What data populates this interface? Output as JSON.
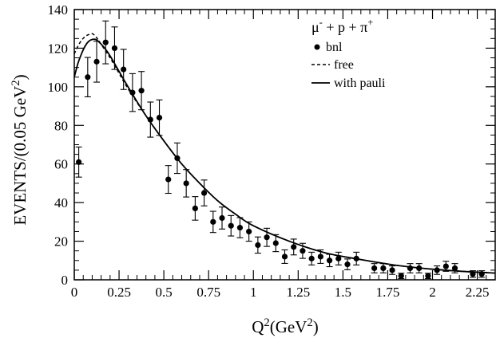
{
  "chart_data": {
    "type": "scatter",
    "title": "",
    "xlabel": "Q^2(GeV^2)",
    "ylabel": "EVENTS/(0.05 GeV^2)",
    "xlim": [
      0,
      2.35
    ],
    "ylim": [
      0,
      140
    ],
    "x_ticks": [
      0,
      0.25,
      0.5,
      0.75,
      1,
      1.25,
      1.5,
      1.75,
      2,
      2.25
    ],
    "x_tick_labels": [
      "0",
      "0.25",
      "0.5",
      "0.75",
      "1",
      "1.25",
      "1.5",
      "1.75",
      "2",
      "2.25"
    ],
    "y_ticks": [
      0,
      20,
      40,
      60,
      80,
      100,
      120,
      140
    ],
    "y_tick_labels": [
      "0",
      "20",
      "40",
      "60",
      "80",
      "100",
      "120",
      "140"
    ],
    "grid": false,
    "legend_placement": "top-right",
    "legend_title": "μ- + p + π+",
    "series": [
      {
        "name": "bnl",
        "kind": "points-with-errorbars",
        "x": [
          0.025,
          0.075,
          0.125,
          0.175,
          0.225,
          0.275,
          0.325,
          0.375,
          0.425,
          0.475,
          0.525,
          0.575,
          0.625,
          0.675,
          0.725,
          0.775,
          0.825,
          0.875,
          0.925,
          0.975,
          1.025,
          1.075,
          1.125,
          1.175,
          1.225,
          1.275,
          1.325,
          1.375,
          1.425,
          1.475,
          1.525,
          1.575,
          1.675,
          1.725,
          1.775,
          1.825,
          1.875,
          1.925,
          1.975,
          2.025,
          2.075,
          2.125,
          2.225,
          2.275
        ],
        "y": [
          61,
          105,
          113,
          123,
          120,
          109,
          97,
          98,
          83,
          84,
          52,
          63,
          50,
          37,
          45,
          30,
          32,
          28,
          27,
          25,
          18,
          22,
          19,
          12,
          17,
          15,
          11,
          12,
          10,
          11,
          8,
          11,
          6,
          6,
          5,
          2,
          6,
          6,
          2,
          5,
          7,
          6,
          3,
          3
        ],
        "err": [
          7.8,
          10.2,
          10.6,
          11.1,
          11,
          10.4,
          9.8,
          9.9,
          9.1,
          9.2,
          7.2,
          7.9,
          7.1,
          6.1,
          6.7,
          5.5,
          5.7,
          5.3,
          5.2,
          5,
          4.2,
          4.7,
          4.4,
          3.5,
          4.1,
          3.9,
          3.3,
          3.5,
          3.2,
          3.3,
          2.8,
          3.3,
          2.4,
          2.4,
          2.2,
          1.4,
          2.4,
          2.4,
          1.4,
          2.2,
          2.6,
          2.4,
          1.7,
          1.7
        ]
      },
      {
        "name": "free",
        "kind": "dashed-curve",
        "x": [
          0,
          0.02,
          0.04,
          0.06,
          0.08,
          0.1,
          0.12,
          0.15,
          0.2,
          0.25,
          0.3,
          0.4,
          0.5,
          0.6,
          0.7,
          0.8,
          0.9,
          1.0,
          1.2,
          1.4,
          1.6,
          1.8,
          2.0,
          2.2,
          2.35
        ],
        "y": [
          117,
          121,
          124,
          126,
          127,
          127.5,
          126,
          122,
          115,
          107,
          99,
          85,
          72,
          60,
          50,
          41,
          34,
          28,
          20,
          14,
          10.5,
          7.5,
          5.5,
          4.2,
          3.5
        ]
      },
      {
        "name": "with pauli",
        "kind": "solid-curve",
        "x": [
          0,
          0.02,
          0.04,
          0.06,
          0.08,
          0.1,
          0.12,
          0.14,
          0.17,
          0.2,
          0.25,
          0.3,
          0.4,
          0.5,
          0.6,
          0.7,
          0.8,
          0.9,
          1.0,
          1.2,
          1.4,
          1.6,
          1.8,
          2.0,
          2.2,
          2.35
        ],
        "y": [
          105,
          112,
          117,
          121,
          123.5,
          124.5,
          124.5,
          123,
          120,
          116,
          108,
          100,
          85,
          72,
          60,
          50,
          41,
          34,
          28,
          20,
          14,
          10.5,
          7.5,
          5.5,
          4.2,
          3.5
        ]
      }
    ]
  }
}
